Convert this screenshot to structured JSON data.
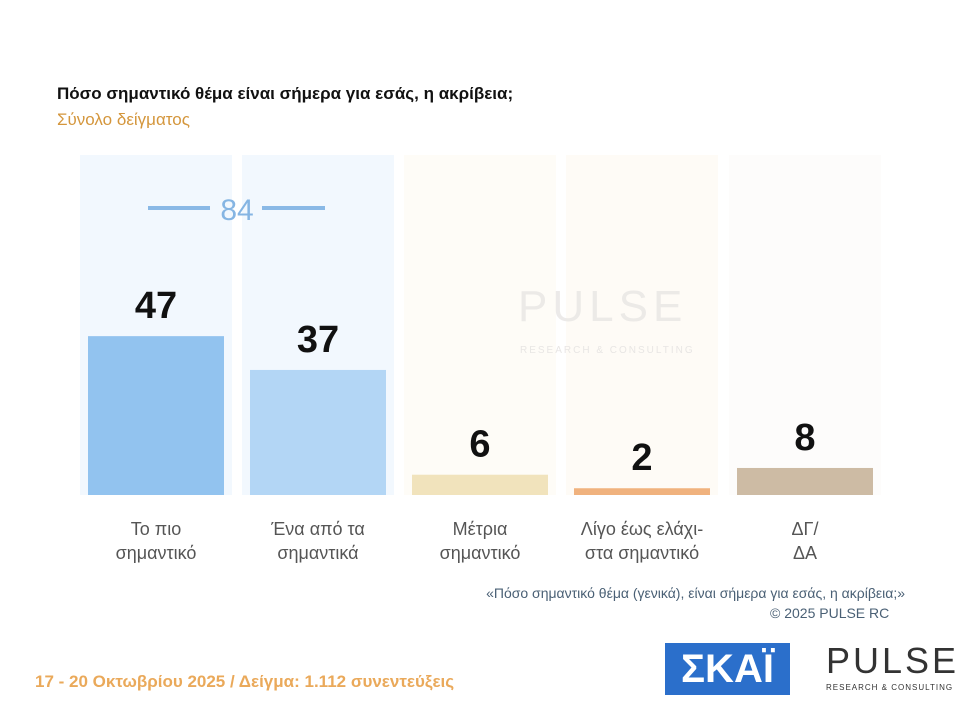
{
  "title": "Πόσο σημαντικό θέμα είναι σήμερα για εσάς, η ακρίβεια;",
  "subtitle": "Σύνολο δείγματος",
  "chart_data": {
    "type": "bar",
    "categories": [
      "Το πιο\nσημαντικό",
      "Ένα από τα\nσημαντικά",
      "Μέτρια\nσημαντικό",
      "Λίγο έως ελάχι-\nστα σημαντικό",
      "ΔΓ/\nΔΑ"
    ],
    "values": [
      47,
      37,
      6,
      2,
      8
    ],
    "colors": [
      "#92c3ef",
      "#b3d6f5",
      "#f1e3bc",
      "#f0b27e",
      "#cdbba4"
    ],
    "bracket_value": 84
  },
  "footnote": "«Πόσο σημαντικό θέμα (γενικά), είναι σήμερα για εσάς, η ακρίβεια;»",
  "copyright": "©  2025  PULSE RC",
  "footer": "17 - 20 Οκτωβρίου 2025  /  Δείγμα:  1.112 συνεντεύξεις",
  "logos": {
    "skai": "ΣΚΑΪ",
    "pulse": "PULSE",
    "pulse_sub": "RESEARCH & CONSULTING"
  }
}
